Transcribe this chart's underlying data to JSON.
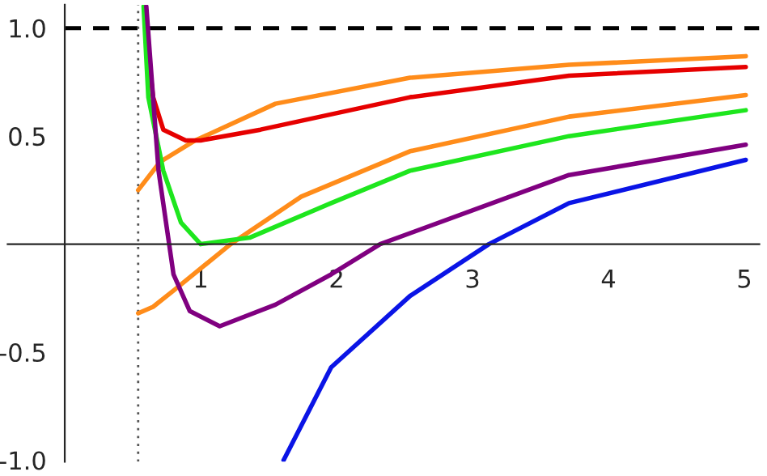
{
  "chart_data": {
    "type": "line",
    "xlim": [
      -0.42,
      5.11
    ],
    "ylim": [
      -1.007,
      1.108
    ],
    "xticks": [
      1,
      2,
      3,
      4,
      5
    ],
    "yticks": [
      {
        "value": 1,
        "label": "1.0"
      },
      {
        "value": 0.5,
        "label": "0.5"
      },
      {
        "value": -0.5,
        "label": "-0.5"
      },
      {
        "value": -1,
        "label": "-1.0"
      }
    ],
    "grid": false,
    "line_style": "solid",
    "marker": "none",
    "ref_lines": [
      {
        "axis": "y",
        "value": 1,
        "color": "#000000",
        "line_style": "dashed"
      },
      {
        "axis": "x",
        "value": 0.54,
        "color": "#555555",
        "line_style": "dotted"
      }
    ],
    "series": [
      {
        "color": "#ff8c1a",
        "x": [
          0.54,
          0.7,
          0.96,
          1.55,
          2.54,
          3.71,
          5.01
        ],
        "values": [
          0.25,
          0.38,
          0.48,
          0.65,
          0.77,
          0.83,
          0.87
        ]
      },
      {
        "color": "#e60000",
        "x": [
          0.585,
          0.62,
          0.65,
          0.725,
          0.89,
          1.0,
          1.44,
          2.54,
          3.71,
          5.01
        ],
        "values": [
          1.1,
          0.85,
          0.68,
          0.53,
          0.48,
          0.48,
          0.53,
          0.68,
          0.78,
          0.82
        ]
      },
      {
        "color": "#ff8c1a",
        "x": [
          0.54,
          0.65,
          0.81,
          1.22,
          1.74,
          2.54,
          3.71,
          5.01
        ],
        "values": [
          -0.32,
          -0.29,
          -0.21,
          0.0,
          0.22,
          0.43,
          0.59,
          0.69
        ]
      },
      {
        "color": "#1ee61e",
        "x": [
          0.58,
          0.615,
          0.725,
          0.855,
          1.0,
          1.36,
          1.96,
          2.54,
          3.71,
          5.01
        ],
        "values": [
          1.1,
          0.68,
          0.34,
          0.1,
          0.0,
          0.03,
          0.19,
          0.34,
          0.5,
          0.62
        ]
      },
      {
        "color": "#800080",
        "x": [
          0.6,
          0.69,
          0.8,
          0.92,
          1.14,
          1.55,
          1.96,
          2.32,
          3.71,
          5.01
        ],
        "values": [
          1.1,
          0.34,
          -0.14,
          -0.31,
          -0.38,
          -0.28,
          -0.14,
          0.0,
          0.32,
          0.46
        ]
      },
      {
        "color": "#0a14e6",
        "x": [
          1.61,
          1.96,
          2.54,
          3.12,
          3.71,
          5.01
        ],
        "values": [
          -1.0,
          -0.57,
          -0.24,
          0.0,
          0.19,
          0.39
        ]
      }
    ]
  }
}
